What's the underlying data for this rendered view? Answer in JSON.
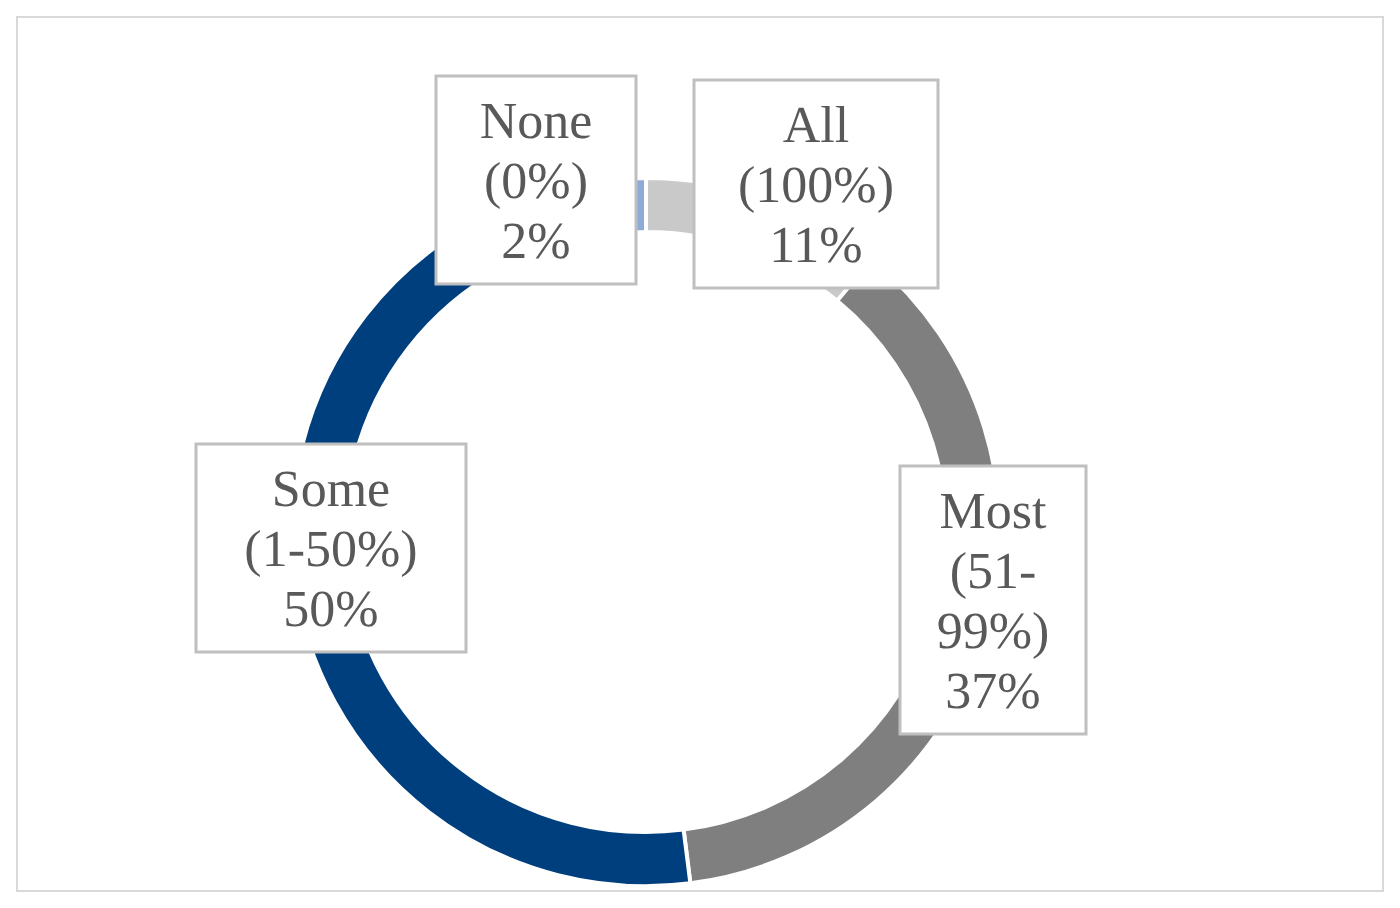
{
  "chart_data": {
    "type": "donut",
    "categories": [
      "All (100%)",
      "Most (51-99%)",
      "Some (1-50%)",
      "None (0%)"
    ],
    "values": [
      11,
      37,
      50,
      2
    ],
    "value_labels": [
      "11%",
      "37%",
      "50%",
      "2%"
    ],
    "colors": [
      "#c9c9c9",
      "#7f7f7f",
      "#003f7d",
      "#8eaadb"
    ]
  }
}
